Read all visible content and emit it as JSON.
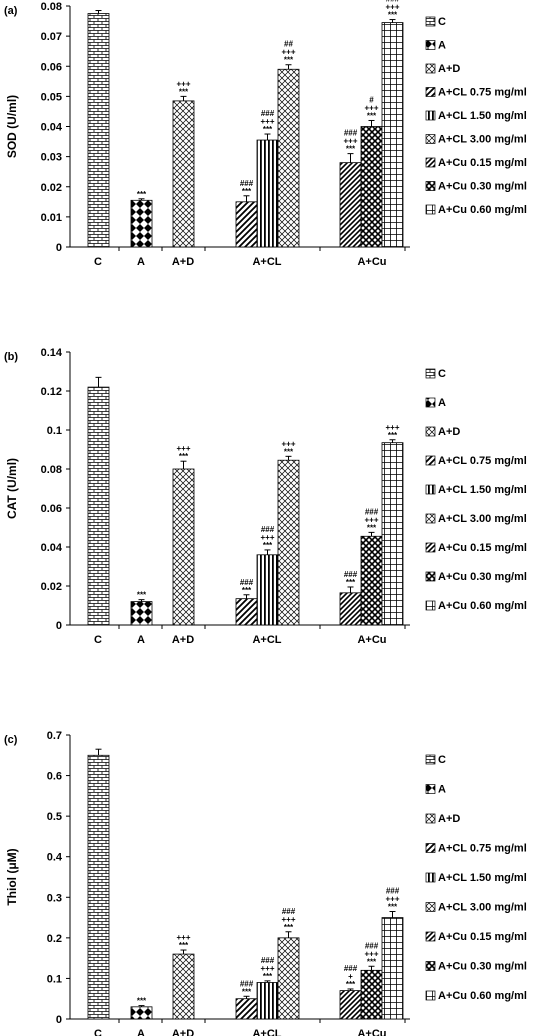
{
  "legend": [
    "C",
    "A",
    "A+D",
    "A+CL 0.75 mg/ml",
    "A+CL 1.50 mg/ml",
    "A+CL 3.00 mg/ml",
    "A+Cu 0.15 mg/ml",
    "A+Cu 0.30 mg/ml",
    "A+Cu 0.60 mg/ml"
  ],
  "patterns": [
    "brick",
    "diamond",
    "crosshatch",
    "diag",
    "vert",
    "crosshatch",
    "diagdense",
    "checker",
    "grid"
  ],
  "groups": [
    "C",
    "A",
    "A+D",
    "A+CL",
    "A+Cu"
  ],
  "chart_data": [
    {
      "type": "bar",
      "panel": "(a)",
      "ylabel": "SOD (U/ml)",
      "ylim": [
        0,
        0.08
      ],
      "yticks": [
        "0",
        "0.01",
        "0.02",
        "0.03",
        "0.04",
        "0.05",
        "0.06",
        "0.07",
        "0.08"
      ],
      "bars": [
        {
          "series": "C",
          "value": 0.0775,
          "err": 0.001,
          "sig": []
        },
        {
          "series": "A",
          "value": 0.0155,
          "err": 0.0005,
          "sig": [
            "***"
          ]
        },
        {
          "series": "A+D",
          "value": 0.0485,
          "err": 0.0015,
          "sig": [
            "+++",
            "***"
          ]
        },
        {
          "series": "A+CL 0.75 mg/ml",
          "value": 0.015,
          "err": 0.002,
          "sig": [
            "###",
            "***"
          ]
        },
        {
          "series": "A+CL 1.50 mg/ml",
          "value": 0.0355,
          "err": 0.002,
          "sig": [
            "###",
            "+++",
            "***"
          ]
        },
        {
          "series": "A+CL 3.00 mg/ml",
          "value": 0.059,
          "err": 0.0015,
          "sig": [
            "##",
            "+++",
            "***"
          ]
        },
        {
          "series": "A+Cu 0.15 mg/ml",
          "value": 0.028,
          "err": 0.003,
          "sig": [
            "###",
            "+++",
            "***"
          ]
        },
        {
          "series": "A+Cu 0.30 mg/ml",
          "value": 0.04,
          "err": 0.002,
          "sig": [
            "#",
            "+++",
            "***"
          ]
        },
        {
          "series": "A+Cu 0.60 mg/ml",
          "value": 0.0745,
          "err": 0.001,
          "sig": [
            "###",
            "+++",
            "***"
          ]
        }
      ]
    },
    {
      "type": "bar",
      "panel": "(b)",
      "ylabel": "CAT (U/ml)",
      "ylim": [
        0,
        0.14
      ],
      "yticks": [
        "0",
        "0.02",
        "0.04",
        "0.06",
        "0.08",
        "0.1",
        "0.12",
        "0.14"
      ],
      "bars": [
        {
          "series": "C",
          "value": 0.122,
          "err": 0.005,
          "sig": []
        },
        {
          "series": "A",
          "value": 0.012,
          "err": 0.001,
          "sig": [
            "***"
          ]
        },
        {
          "series": "A+D",
          "value": 0.08,
          "err": 0.004,
          "sig": [
            "+++",
            "***"
          ]
        },
        {
          "series": "A+CL 0.75 mg/ml",
          "value": 0.0135,
          "err": 0.002,
          "sig": [
            "###",
            "***"
          ]
        },
        {
          "series": "A+CL 1.50 mg/ml",
          "value": 0.036,
          "err": 0.0025,
          "sig": [
            "###",
            "+++",
            "***"
          ]
        },
        {
          "series": "A+CL 3.00 mg/ml",
          "value": 0.0845,
          "err": 0.002,
          "sig": [
            "+++",
            "***"
          ]
        },
        {
          "series": "A+Cu 0.15 mg/ml",
          "value": 0.0165,
          "err": 0.003,
          "sig": [
            "###",
            "***"
          ]
        },
        {
          "series": "A+Cu 0.30 mg/ml",
          "value": 0.0455,
          "err": 0.002,
          "sig": [
            "###",
            "+++",
            "***"
          ]
        },
        {
          "series": "A+Cu 0.60 mg/ml",
          "value": 0.0935,
          "err": 0.0015,
          "sig": [
            "+++",
            "***"
          ]
        }
      ]
    },
    {
      "type": "bar",
      "panel": "(c)",
      "ylabel": "Thiol (μM)",
      "ylim": [
        0,
        0.7
      ],
      "yticks": [
        "0",
        "0.1",
        "0.2",
        "0.3",
        "0.4",
        "0.5",
        "0.6",
        "0.7"
      ],
      "bars": [
        {
          "series": "C",
          "value": 0.65,
          "err": 0.015,
          "sig": []
        },
        {
          "series": "A",
          "value": 0.03,
          "err": 0.003,
          "sig": [
            "***"
          ]
        },
        {
          "series": "A+D",
          "value": 0.16,
          "err": 0.01,
          "sig": [
            "+++",
            "***"
          ]
        },
        {
          "series": "A+CL 0.75 mg/ml",
          "value": 0.05,
          "err": 0.006,
          "sig": [
            "###",
            "***"
          ]
        },
        {
          "series": "A+CL 1.50 mg/ml",
          "value": 0.09,
          "err": 0.004,
          "sig": [
            "###",
            "+++",
            "***"
          ]
        },
        {
          "series": "A+CL 3.00 mg/ml",
          "value": 0.2,
          "err": 0.015,
          "sig": [
            "###",
            "+++",
            "***"
          ]
        },
        {
          "series": "A+Cu 0.15 mg/ml",
          "value": 0.07,
          "err": 0.004,
          "sig": [
            "###",
            "+",
            "***"
          ]
        },
        {
          "series": "A+Cu 0.30 mg/ml",
          "value": 0.12,
          "err": 0.01,
          "sig": [
            "###",
            "+++",
            "***"
          ]
        },
        {
          "series": "A+Cu 0.60 mg/ml",
          "value": 0.25,
          "err": 0.015,
          "sig": [
            "###",
            "+++",
            "***"
          ]
        }
      ]
    }
  ]
}
